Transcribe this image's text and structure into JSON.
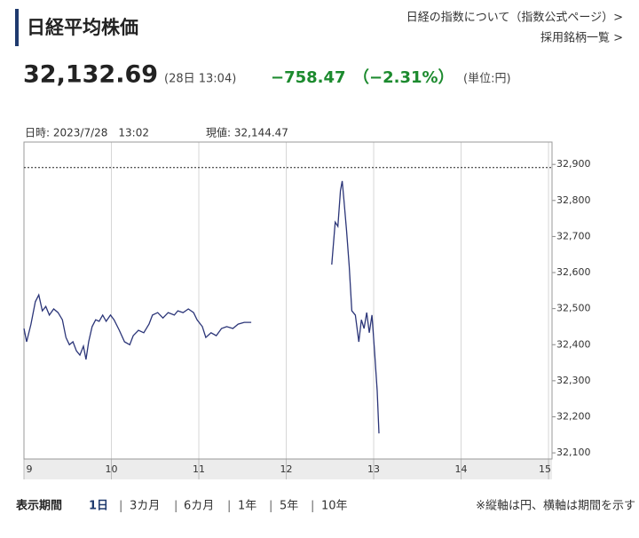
{
  "header": {
    "title": "日経平均株価",
    "links": [
      "日経の指数について（指数公式ページ）>",
      "採用銘柄一覧 >"
    ]
  },
  "quote": {
    "price": "32,132.69",
    "time": "(28日 13:04)",
    "change": "−758.47",
    "change_pct": "（−2.31%）",
    "unit": "(単位:円)"
  },
  "cursor": {
    "datetime": "日時: 2023/7/28　13:02",
    "current": "現値: 32,144.47"
  },
  "chart_data": {
    "type": "line",
    "x": [
      9.0,
      9.03,
      9.08,
      9.13,
      9.17,
      9.21,
      9.25,
      9.29,
      9.34,
      9.39,
      9.44,
      9.48,
      9.52,
      9.56,
      9.6,
      9.64,
      9.68,
      9.71,
      9.74,
      9.78,
      9.82,
      9.86,
      9.9,
      9.94,
      9.99,
      10.03,
      10.09,
      10.15,
      10.21,
      10.25,
      10.31,
      10.37,
      10.43,
      10.47,
      10.53,
      10.59,
      10.65,
      10.72,
      10.76,
      10.82,
      10.88,
      10.94,
      10.98,
      11.04,
      11.08,
      11.14,
      11.2,
      11.26,
      11.32,
      11.39,
      11.45,
      11.52,
      11.6,
      12.0,
      12.52,
      12.56,
      12.59,
      12.62,
      12.64,
      12.66,
      12.69,
      12.72,
      12.75,
      12.79,
      12.83,
      12.86,
      12.89,
      12.92,
      12.95,
      12.98,
      13.01,
      13.04,
      13.06
    ],
    "series": [
      {
        "name": "日経平均株価",
        "color": "#2b3578",
        "values": [
          32445,
          32408,
          32457,
          32519,
          32538,
          32494,
          32506,
          32482,
          32499,
          32489,
          32469,
          32420,
          32400,
          32408,
          32383,
          32371,
          32396,
          32359,
          32408,
          32450,
          32469,
          32465,
          32482,
          32465,
          32482,
          32469,
          32440,
          32408,
          32400,
          32425,
          32440,
          32433,
          32457,
          32482,
          32489,
          32474,
          32489,
          32482,
          32494,
          32489,
          32499,
          32489,
          32469,
          32450,
          32420,
          32433,
          32425,
          32445,
          32450,
          32445,
          32457,
          32462,
          32462,
          null,
          32622,
          32740,
          32728,
          32827,
          32854,
          32802,
          32716,
          32617,
          32494,
          32482,
          32408,
          32469,
          32445,
          32489,
          32433,
          32482,
          32383,
          32272,
          32154
        ]
      }
    ],
    "reference_line": 32891.16,
    "xlim": [
      9,
      15.04
    ],
    "xticks": [
      9,
      10,
      11,
      12,
      13,
      14,
      15
    ],
    "ylim": [
      32083,
      32962
    ],
    "yticks": [
      {
        "value": 32100,
        "label": "32,100"
      },
      {
        "value": 32200,
        "label": "32,200"
      },
      {
        "value": 32300,
        "label": "32,300"
      },
      {
        "value": 32400,
        "label": "32,400"
      },
      {
        "value": 32500,
        "label": "32,500"
      },
      {
        "value": 32600,
        "label": "32,600"
      },
      {
        "value": 32700,
        "label": "32,700"
      },
      {
        "value": 32800,
        "label": "32,800"
      },
      {
        "value": 32900,
        "label": "32,900"
      }
    ],
    "grid": true
  },
  "footer": {
    "label": "表示期間",
    "periods": [
      "1日",
      "3カ月",
      "6カ月",
      "1年",
      "5年",
      "10年"
    ],
    "note": "※縦軸は円、横軸は期間を示す"
  }
}
